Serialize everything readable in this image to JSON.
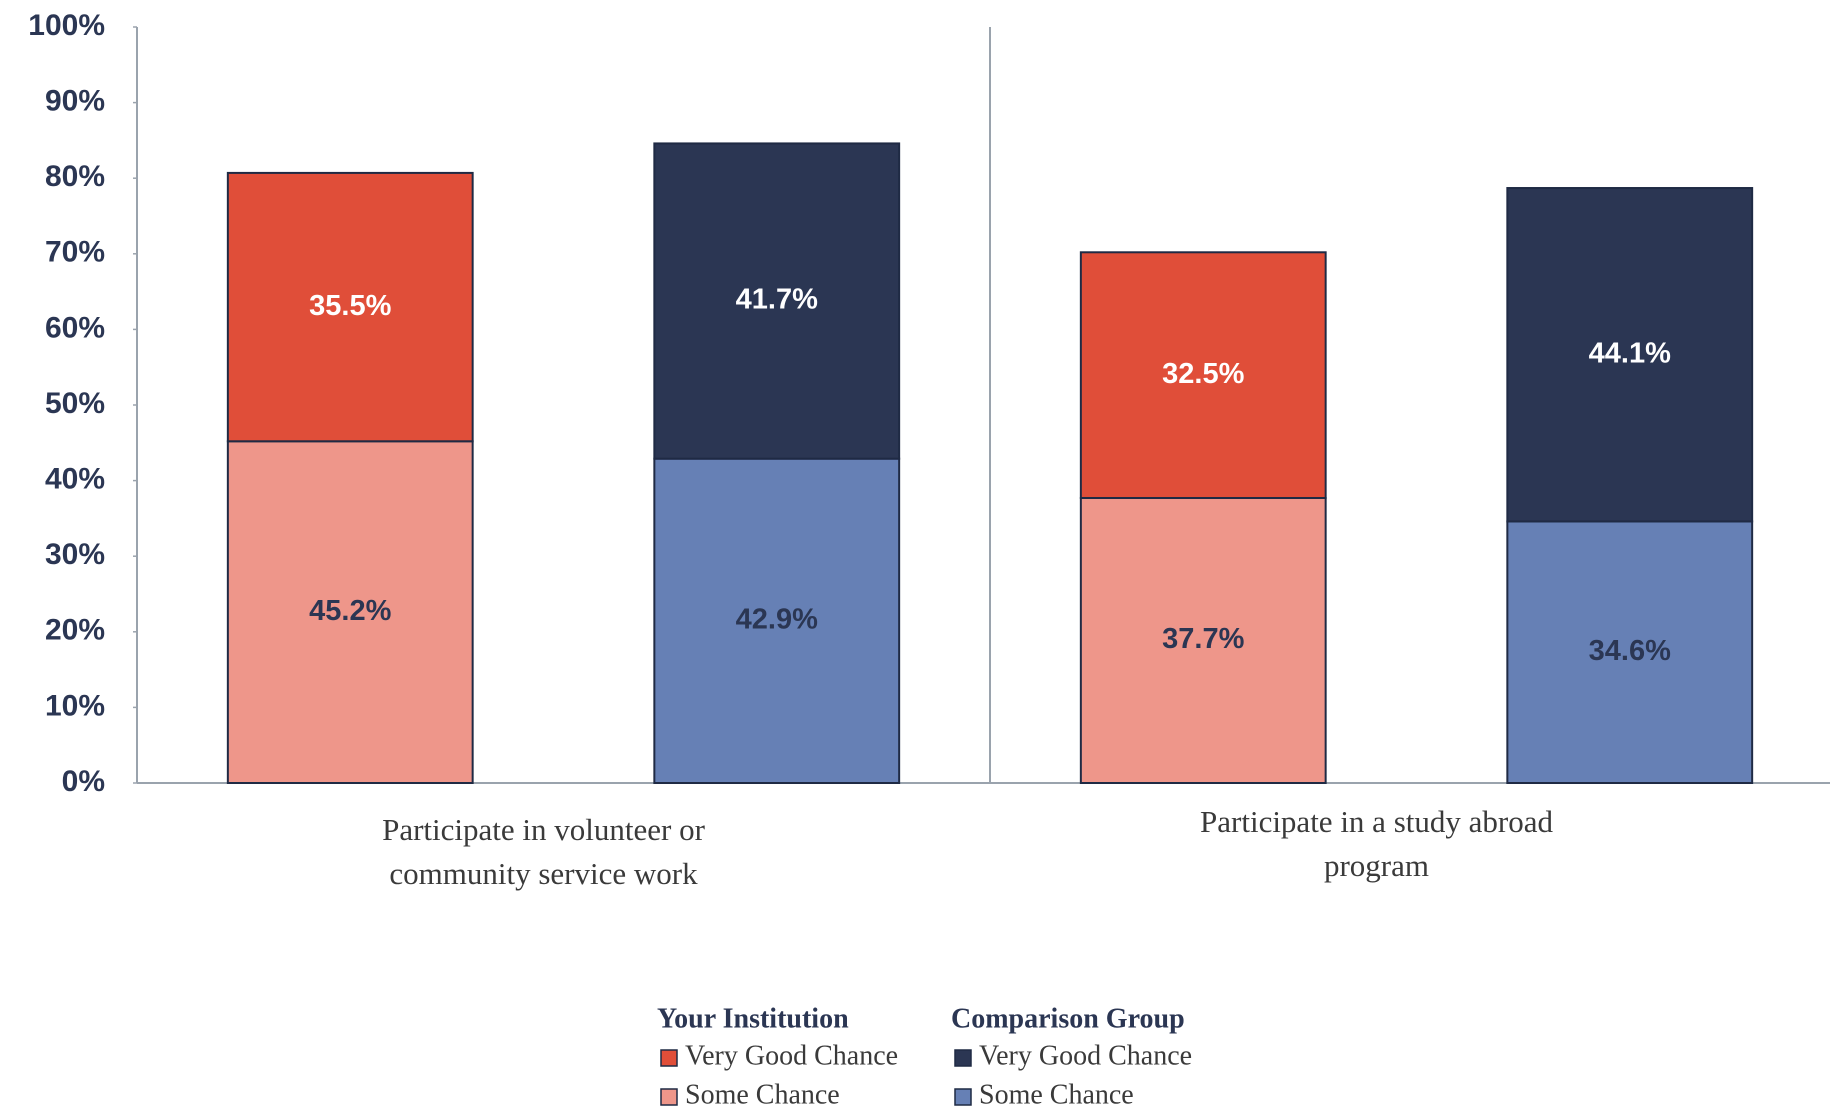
{
  "chart_data": {
    "type": "stacked_bar",
    "categories": [
      "Participate in volunteer or community service work",
      "Participate in a study abroad program"
    ],
    "series": [
      {
        "group": "Your Institution",
        "name": "Some Chance",
        "color": "#ee968a",
        "label_color": "#2b3653",
        "values": [
          45.2,
          37.7
        ],
        "value_labels": [
          "45.2%",
          "37.7%"
        ]
      },
      {
        "group": "Your Institution",
        "name": "Very Good Chance",
        "color": "#e04e39",
        "label_color": "#ffffff",
        "values": [
          35.5,
          32.5
        ],
        "value_labels": [
          "35.5%",
          "32.5%"
        ]
      },
      {
        "group": "Comparison Group",
        "name": "Some Chance",
        "color": "#6680b5",
        "label_color": "#2b3653",
        "values": [
          42.9,
          34.6
        ],
        "value_labels": [
          "42.9%",
          "34.6%"
        ]
      },
      {
        "group": "Comparison Group",
        "name": "Very Good Chance",
        "color": "#2b3653",
        "label_color": "#ffffff",
        "values": [
          41.7,
          44.1
        ],
        "value_labels": [
          "41.7%",
          "44.1%"
        ]
      }
    ],
    "ylim": [
      0,
      100
    ],
    "yticks": [
      {
        "value": 0,
        "label": "0%"
      },
      {
        "value": 10,
        "label": "10%"
      },
      {
        "value": 20,
        "label": "20%"
      },
      {
        "value": 30,
        "label": "30%"
      },
      {
        "value": 40,
        "label": "40%"
      },
      {
        "value": 50,
        "label": "50%"
      },
      {
        "value": 60,
        "label": "60%"
      },
      {
        "value": 70,
        "label": "70%"
      },
      {
        "value": 80,
        "label": "80%"
      },
      {
        "value": 90,
        "label": "90%"
      },
      {
        "value": 100,
        "label": "100%"
      }
    ],
    "grid": false
  }
}
